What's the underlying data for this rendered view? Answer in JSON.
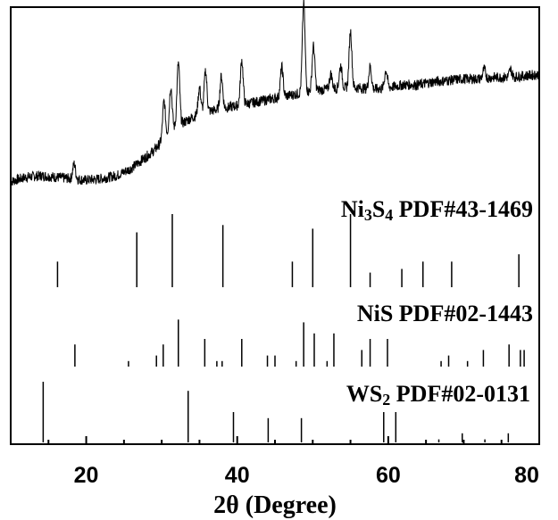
{
  "chart_data": {
    "type": "line",
    "xlabel": "2θ (Degree)",
    "xlim": [
      10,
      80
    ],
    "x_ticks": [
      "20",
      "40",
      "60",
      "80"
    ],
    "grid": false,
    "pattern": {
      "x": [
        10,
        12,
        14,
        16,
        18,
        20,
        22,
        24,
        26,
        27,
        28,
        29,
        30,
        31,
        32,
        33,
        34,
        35,
        36,
        38,
        40,
        42,
        44,
        46,
        48,
        50,
        52,
        54,
        56,
        58,
        60,
        62,
        64,
        66,
        68,
        70,
        72,
        74,
        76,
        78,
        80
      ],
      "y": [
        0.05,
        0.08,
        0.09,
        0.08,
        0.07,
        0.06,
        0.07,
        0.09,
        0.14,
        0.18,
        0.22,
        0.26,
        0.32,
        0.38,
        0.42,
        0.45,
        0.48,
        0.5,
        0.52,
        0.54,
        0.56,
        0.58,
        0.6,
        0.62,
        0.64,
        0.66,
        0.67,
        0.68,
        0.68,
        0.67,
        0.68,
        0.7,
        0.7,
        0.72,
        0.73,
        0.74,
        0.74,
        0.75,
        0.75,
        0.76,
        0.77
      ],
      "peaks": [
        {
          "x": 18.4,
          "h": 0.1
        },
        {
          "x": 30.3,
          "h": 0.25
        },
        {
          "x": 31.2,
          "h": 0.3
        },
        {
          "x": 32.2,
          "h": 0.42
        },
        {
          "x": 35.0,
          "h": 0.18
        },
        {
          "x": 35.8,
          "h": 0.28
        },
        {
          "x": 37.9,
          "h": 0.22
        },
        {
          "x": 40.6,
          "h": 0.3
        },
        {
          "x": 45.9,
          "h": 0.2
        },
        {
          "x": 48.8,
          "h": 0.6
        },
        {
          "x": 50.1,
          "h": 0.3
        },
        {
          "x": 52.4,
          "h": 0.1
        },
        {
          "x": 53.7,
          "h": 0.15
        },
        {
          "x": 55.0,
          "h": 0.38
        },
        {
          "x": 57.6,
          "h": 0.15
        },
        {
          "x": 59.7,
          "h": 0.12
        },
        {
          "x": 72.7,
          "h": 0.06
        },
        {
          "x": 76.2,
          "h": 0.05
        }
      ]
    },
    "references": [
      {
        "name_main": "Ni",
        "name_sub1": "3",
        "name_mid": "S",
        "name_sub2": "4",
        "name_pdf": " PDF#43-1469",
        "positions": [
          16.2,
          26.7,
          31.4,
          38.1,
          47.3,
          50.0,
          55.0,
          57.6,
          61.8,
          64.6,
          68.4,
          77.3
        ],
        "intensities": [
          35,
          75,
          100,
          85,
          35,
          80,
          100,
          20,
          25,
          35,
          35,
          45
        ]
      },
      {
        "name_main": "NiS",
        "name_sub1": "",
        "name_mid": "",
        "name_sub2": "",
        "name_pdf": " PDF#02-1443",
        "positions": [
          18.5,
          25.6,
          29.3,
          30.2,
          32.2,
          35.7,
          37.3,
          38.0,
          40.6,
          44.0,
          45.0,
          47.8,
          48.8,
          50.2,
          51.9,
          52.8,
          56.5,
          57.6,
          59.9,
          67.0,
          68.0,
          70.5,
          72.6,
          76.0,
          77.5,
          78.0
        ],
        "intensities": [
          40,
          10,
          20,
          40,
          85,
          50,
          10,
          10,
          50,
          20,
          20,
          10,
          80,
          60,
          10,
          60,
          30,
          50,
          50,
          10,
          20,
          10,
          30,
          40,
          30,
          30
        ]
      },
      {
        "name_main": "WS",
        "name_sub1": "2",
        "name_mid": "",
        "name_sub2": "",
        "name_pdf": " PDF#02-0131",
        "positions": [
          14.3,
          33.5,
          39.5,
          44.1,
          48.5,
          59.4,
          61.0,
          66.7,
          69.8,
          72.8,
          75.9
        ],
        "intensities": [
          100,
          85,
          50,
          40,
          40,
          50,
          50,
          5,
          15,
          5,
          15
        ]
      }
    ]
  }
}
